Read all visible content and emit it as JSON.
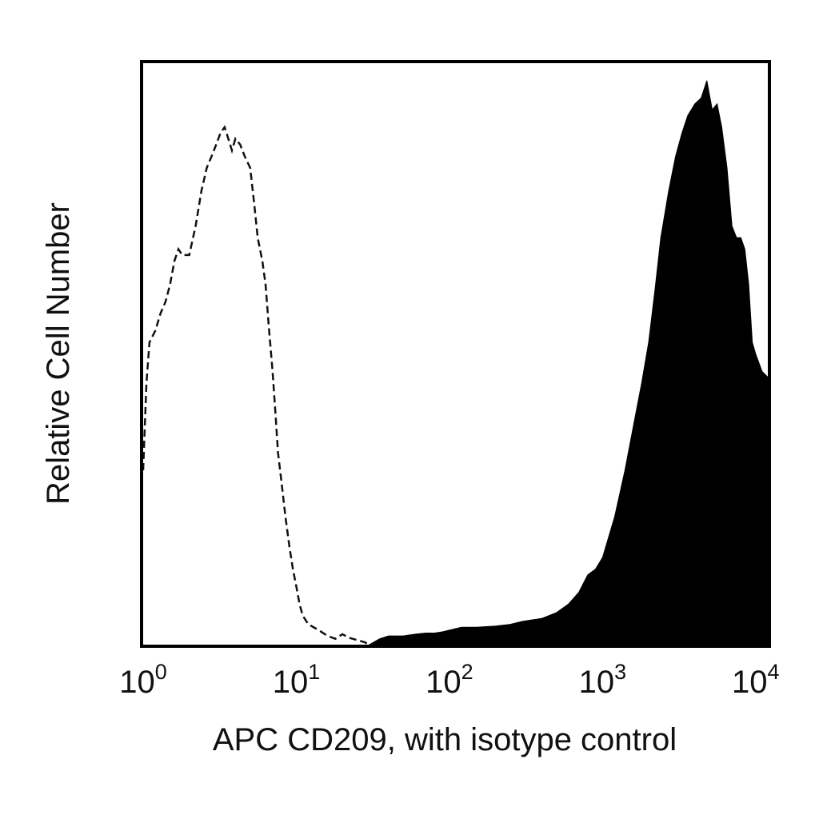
{
  "chart_data": {
    "type": "area",
    "title": "",
    "xlabel": "APC CD209, with isotype control",
    "ylabel": "Relative Cell Number",
    "x_scale": "log",
    "xlim": [
      1,
      12000
    ],
    "ylim": [
      0,
      1.0
    ],
    "grid": false,
    "x_ticks": [
      {
        "value": 1,
        "base": "10",
        "exp": "0"
      },
      {
        "value": 10,
        "base": "10",
        "exp": "1"
      },
      {
        "value": 100,
        "base": "10",
        "exp": "2"
      },
      {
        "value": 1000,
        "base": "10",
        "exp": "3"
      },
      {
        "value": 10000,
        "base": "10",
        "exp": "4"
      }
    ],
    "series": [
      {
        "role": "isotype-control",
        "style": "dashed-outline",
        "color": "#111111",
        "points": [
          [
            1.0,
            0.3
          ],
          [
            1.05,
            0.45
          ],
          [
            1.1,
            0.52
          ],
          [
            1.2,
            0.54
          ],
          [
            1.3,
            0.57
          ],
          [
            1.4,
            0.59
          ],
          [
            1.5,
            0.62
          ],
          [
            1.6,
            0.66
          ],
          [
            1.7,
            0.68
          ],
          [
            1.8,
            0.67
          ],
          [
            2.0,
            0.67
          ],
          [
            2.2,
            0.72
          ],
          [
            2.4,
            0.78
          ],
          [
            2.6,
            0.82
          ],
          [
            2.8,
            0.84
          ],
          [
            3.0,
            0.86
          ],
          [
            3.2,
            0.88
          ],
          [
            3.4,
            0.89
          ],
          [
            3.6,
            0.87
          ],
          [
            3.8,
            0.85
          ],
          [
            4.0,
            0.87
          ],
          [
            4.3,
            0.86
          ],
          [
            4.6,
            0.84
          ],
          [
            5.0,
            0.82
          ],
          [
            5.3,
            0.76
          ],
          [
            5.6,
            0.7
          ],
          [
            6.0,
            0.66
          ],
          [
            6.3,
            0.62
          ],
          [
            6.6,
            0.55
          ],
          [
            7.0,
            0.47
          ],
          [
            7.3,
            0.4
          ],
          [
            7.6,
            0.33
          ],
          [
            8.0,
            0.28
          ],
          [
            8.5,
            0.22
          ],
          [
            9.0,
            0.17
          ],
          [
            9.5,
            0.13
          ],
          [
            10.0,
            0.1
          ],
          [
            10.5,
            0.07
          ],
          [
            11.0,
            0.05
          ],
          [
            12.0,
            0.035
          ],
          [
            14.0,
            0.025
          ],
          [
            16.0,
            0.015
          ],
          [
            18.0,
            0.01
          ],
          [
            20.0,
            0.018
          ],
          [
            22.0,
            0.012
          ],
          [
            25.0,
            0.008
          ],
          [
            28.0,
            0.004
          ],
          [
            30.0,
            0.0
          ]
        ]
      },
      {
        "role": "apc-cd209",
        "style": "filled",
        "color": "#000000",
        "points": [
          [
            30,
            0.0
          ],
          [
            35,
            0.01
          ],
          [
            40,
            0.015
          ],
          [
            50,
            0.015
          ],
          [
            60,
            0.018
          ],
          [
            70,
            0.02
          ],
          [
            80,
            0.02
          ],
          [
            90,
            0.022
          ],
          [
            100,
            0.025
          ],
          [
            120,
            0.03
          ],
          [
            150,
            0.03
          ],
          [
            200,
            0.032
          ],
          [
            250,
            0.035
          ],
          [
            300,
            0.04
          ],
          [
            400,
            0.045
          ],
          [
            500,
            0.055
          ],
          [
            600,
            0.07
          ],
          [
            700,
            0.09
          ],
          [
            800,
            0.12
          ],
          [
            900,
            0.13
          ],
          [
            1000,
            0.15
          ],
          [
            1200,
            0.22
          ],
          [
            1400,
            0.3
          ],
          [
            1600,
            0.38
          ],
          [
            1800,
            0.45
          ],
          [
            2000,
            0.52
          ],
          [
            2200,
            0.61
          ],
          [
            2400,
            0.7
          ],
          [
            2700,
            0.78
          ],
          [
            3000,
            0.84
          ],
          [
            3300,
            0.88
          ],
          [
            3600,
            0.91
          ],
          [
            4000,
            0.93
          ],
          [
            4400,
            0.94
          ],
          [
            4800,
            0.97
          ],
          [
            5200,
            0.92
          ],
          [
            5600,
            0.93
          ],
          [
            6000,
            0.89
          ],
          [
            6500,
            0.82
          ],
          [
            7000,
            0.72
          ],
          [
            7500,
            0.7
          ],
          [
            8000,
            0.7
          ],
          [
            8500,
            0.68
          ],
          [
            9000,
            0.62
          ],
          [
            9500,
            0.52
          ],
          [
            10000,
            0.5
          ],
          [
            11000,
            0.47
          ],
          [
            12000,
            0.46
          ]
        ]
      }
    ]
  }
}
